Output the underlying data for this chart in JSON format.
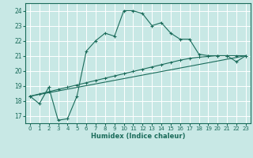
{
  "xlabel": "Humidex (Indice chaleur)",
  "background_color": "#c8e8e5",
  "grid_color": "#ffffff",
  "line_color": "#1a6b5a",
  "xlim": [
    -0.5,
    23.5
  ],
  "ylim": [
    16.5,
    24.5
  ],
  "yticks": [
    17,
    18,
    19,
    20,
    21,
    22,
    23,
    24
  ],
  "xticks": [
    0,
    1,
    2,
    3,
    4,
    5,
    6,
    7,
    8,
    9,
    10,
    11,
    12,
    13,
    14,
    15,
    16,
    17,
    18,
    19,
    20,
    21,
    22,
    23
  ],
  "line1_x": [
    0,
    1,
    2,
    3,
    4,
    5,
    6,
    7,
    8,
    9,
    10,
    11,
    12,
    13,
    14,
    15,
    16,
    17,
    18,
    19,
    20,
    21,
    22,
    23
  ],
  "line1_y": [
    18.3,
    17.8,
    18.9,
    16.7,
    16.8,
    18.3,
    21.3,
    22.0,
    22.5,
    22.3,
    24.0,
    24.0,
    23.8,
    23.0,
    23.2,
    22.5,
    22.1,
    22.1,
    21.1,
    21.0,
    21.0,
    21.0,
    20.6,
    21.0
  ],
  "line2_x": [
    0,
    1,
    2,
    3,
    4,
    5,
    6,
    7,
    8,
    9,
    10,
    11,
    12,
    13,
    14,
    15,
    16,
    17,
    18,
    19,
    20,
    21,
    22,
    23
  ],
  "line2_y": [
    18.3,
    18.45,
    18.6,
    18.75,
    18.9,
    19.05,
    19.2,
    19.35,
    19.5,
    19.65,
    19.8,
    19.95,
    20.1,
    20.25,
    20.4,
    20.55,
    20.7,
    20.82,
    20.9,
    20.95,
    21.0,
    21.0,
    21.0,
    21.0
  ],
  "line3_x": [
    0,
    23
  ],
  "line3_y": [
    18.3,
    21.0
  ]
}
